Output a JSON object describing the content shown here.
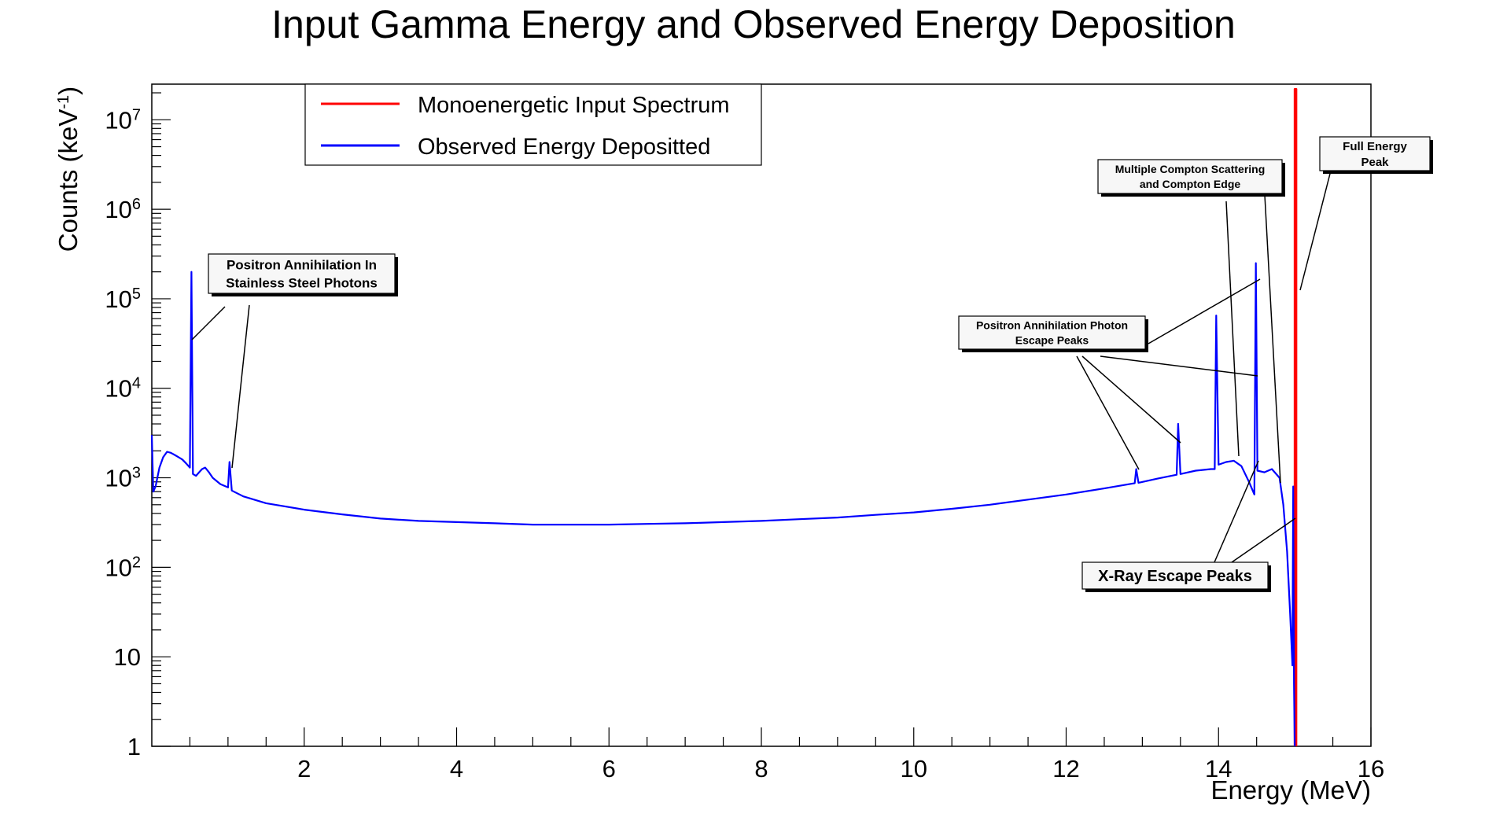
{
  "chart_data": {
    "type": "line",
    "title": "Input Gamma Energy and Observed Energy Deposition",
    "xlabel": "Energy (MeV)",
    "ylabel": "Counts (keV",
    "ylabel_sup": "-1",
    "ylabel_close": ")",
    "y_scale": "log",
    "xlim": [
      0,
      16
    ],
    "ylim": [
      1,
      25000000
    ],
    "x_ticks": [
      {
        "value": 2,
        "label": "2"
      },
      {
        "value": 4,
        "label": "4"
      },
      {
        "value": 6,
        "label": "6"
      },
      {
        "value": 8,
        "label": "8"
      },
      {
        "value": 10,
        "label": "10"
      },
      {
        "value": 12,
        "label": "12"
      },
      {
        "value": 14,
        "label": "14"
      },
      {
        "value": 16,
        "label": "16"
      }
    ],
    "y_ticks": [
      {
        "value": 1,
        "label": "1",
        "exp": ""
      },
      {
        "value": 10,
        "label": "10",
        "exp": ""
      },
      {
        "value": 100,
        "label": "10",
        "exp": "2"
      },
      {
        "value": 1000,
        "label": "10",
        "exp": "3"
      },
      {
        "value": 10000,
        "label": "10",
        "exp": "4"
      },
      {
        "value": 100000,
        "label": "10",
        "exp": "5"
      },
      {
        "value": 1000000,
        "label": "10",
        "exp": "6"
      },
      {
        "value": 10000000,
        "label": "10",
        "exp": "7"
      }
    ],
    "legend": {
      "position": "top-left",
      "entries": [
        {
          "name": "Monoenergetic Input Spectrum",
          "color": "#ff0000"
        },
        {
          "name": "Observed Energy Depositted",
          "color": "#0000ff"
        }
      ]
    },
    "series": [
      {
        "name": "Monoenergetic Input Spectrum",
        "color": "#ff0000",
        "points": [
          [
            15.0,
            1
          ],
          [
            15.0,
            22000000
          ],
          [
            15.02,
            22000000
          ],
          [
            15.02,
            1
          ]
        ]
      },
      {
        "name": "Observed Energy Depositted",
        "color": "#0000ff",
        "points": [
          [
            0.0,
            3000
          ],
          [
            0.02,
            700
          ],
          [
            0.05,
            800
          ],
          [
            0.1,
            1300
          ],
          [
            0.15,
            1700
          ],
          [
            0.2,
            1950
          ],
          [
            0.25,
            1900
          ],
          [
            0.3,
            1800
          ],
          [
            0.35,
            1700
          ],
          [
            0.4,
            1600
          ],
          [
            0.45,
            1450
          ],
          [
            0.5,
            1300
          ],
          [
            0.52,
            200000
          ],
          [
            0.54,
            1100
          ],
          [
            0.58,
            1050
          ],
          [
            0.62,
            1150
          ],
          [
            0.66,
            1250
          ],
          [
            0.7,
            1300
          ],
          [
            0.75,
            1150
          ],
          [
            0.8,
            1000
          ],
          [
            0.9,
            850
          ],
          [
            1.0,
            780
          ],
          [
            1.02,
            1500
          ],
          [
            1.05,
            720
          ],
          [
            1.2,
            620
          ],
          [
            1.5,
            520
          ],
          [
            2.0,
            440
          ],
          [
            2.5,
            390
          ],
          [
            3.0,
            350
          ],
          [
            3.5,
            330
          ],
          [
            4.0,
            320
          ],
          [
            4.5,
            310
          ],
          [
            5.0,
            300
          ],
          [
            5.5,
            300
          ],
          [
            6.0,
            300
          ],
          [
            6.5,
            305
          ],
          [
            7.0,
            310
          ],
          [
            7.5,
            320
          ],
          [
            8.0,
            330
          ],
          [
            8.5,
            345
          ],
          [
            9.0,
            360
          ],
          [
            9.5,
            385
          ],
          [
            10.0,
            410
          ],
          [
            10.5,
            450
          ],
          [
            11.0,
            500
          ],
          [
            11.5,
            570
          ],
          [
            12.0,
            650
          ],
          [
            12.5,
            760
          ],
          [
            12.9,
            870
          ],
          [
            12.92,
            1250
          ],
          [
            12.95,
            880
          ],
          [
            13.2,
            980
          ],
          [
            13.45,
            1080
          ],
          [
            13.47,
            4000
          ],
          [
            13.5,
            1100
          ],
          [
            13.7,
            1200
          ],
          [
            13.9,
            1250
          ],
          [
            13.95,
            1250
          ],
          [
            13.97,
            65000
          ],
          [
            14.0,
            1400
          ],
          [
            14.1,
            1500
          ],
          [
            14.2,
            1550
          ],
          [
            14.3,
            1350
          ],
          [
            14.4,
            900
          ],
          [
            14.47,
            650
          ],
          [
            14.49,
            250000
          ],
          [
            14.51,
            1200
          ],
          [
            14.6,
            1150
          ],
          [
            14.7,
            1250
          ],
          [
            14.8,
            1000
          ],
          [
            14.85,
            500
          ],
          [
            14.9,
            150
          ],
          [
            14.94,
            30
          ],
          [
            14.97,
            8
          ],
          [
            14.98,
            800
          ],
          [
            14.99,
            5
          ],
          [
            15.0,
            1
          ]
        ]
      }
    ],
    "annotations": [
      {
        "lines": [
          "Positron Annihilation In",
          "Stainless Steel Photons"
        ]
      },
      {
        "lines": [
          "Positron Annihilation Photon",
          "Escape Peaks"
        ]
      },
      {
        "lines": [
          "Multiple Compton Scattering",
          "and Compton Edge"
        ]
      },
      {
        "lines": [
          "Full Energy",
          "Peak"
        ]
      },
      {
        "lines": [
          "X-Ray Escape Peaks"
        ]
      }
    ]
  }
}
